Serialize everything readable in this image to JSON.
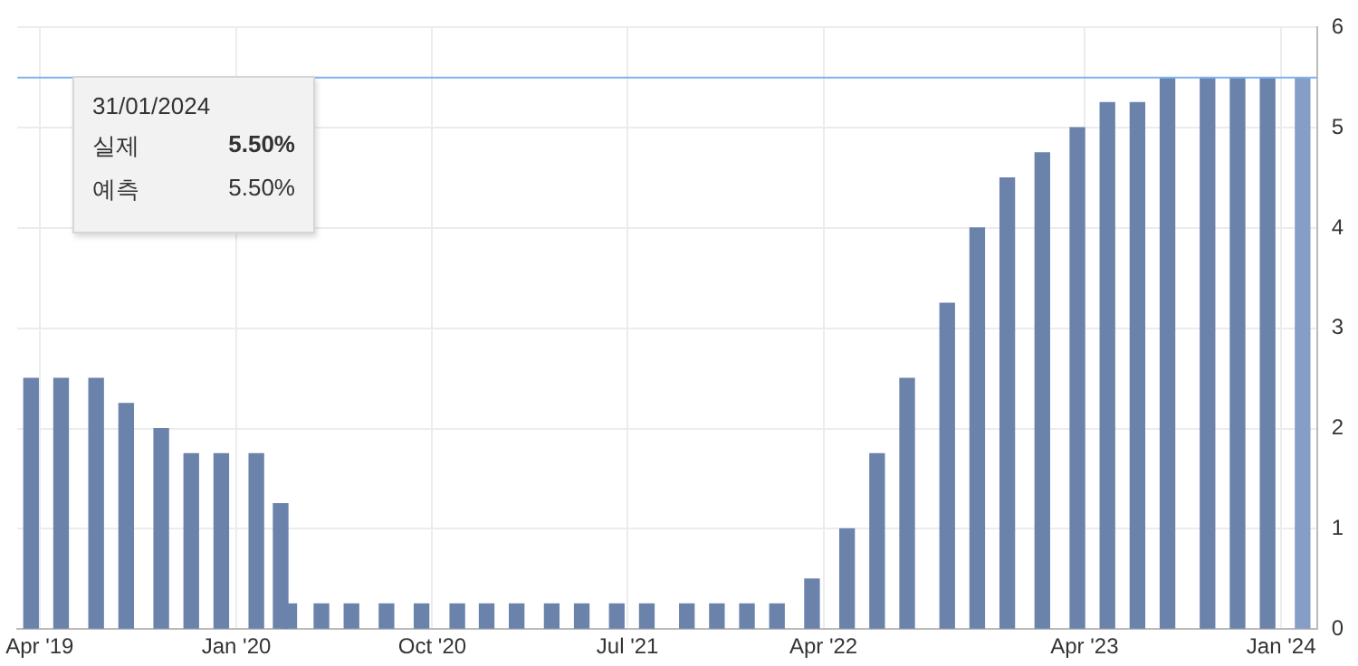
{
  "chart_data": {
    "type": "bar",
    "x": [
      "2019-03-20",
      "2019-05-01",
      "2019-06-19",
      "2019-07-31",
      "2019-09-18",
      "2019-10-30",
      "2019-12-11",
      "2020-01-29",
      "2020-03-03",
      "2020-03-15",
      "2020-04-29",
      "2020-06-10",
      "2020-07-29",
      "2020-09-16",
      "2020-11-05",
      "2020-12-16",
      "2021-01-27",
      "2021-03-17",
      "2021-04-28",
      "2021-06-16",
      "2021-07-28",
      "2021-09-22",
      "2021-11-03",
      "2021-12-15",
      "2022-01-26",
      "2022-03-16",
      "2022-05-04",
      "2022-06-15",
      "2022-07-27",
      "2022-09-21",
      "2022-11-02",
      "2022-12-14",
      "2023-02-01",
      "2023-03-22",
      "2023-05-03",
      "2023-06-14",
      "2023-07-26",
      "2023-09-20",
      "2023-11-01",
      "2023-12-13",
      "2024-01-31"
    ],
    "series": [
      {
        "colors": [
          "#6b82ab",
          "#6b82ab",
          "#6b82ab",
          "#6b82ab",
          "#6b82ab",
          "#6b82ab",
          "#6b82ab",
          "#6b82ab",
          "#6b82ab",
          "#6b82ab",
          "#6b82ab",
          "#6b82ab",
          "#6b82ab",
          "#6b82ab",
          "#6b82ab",
          "#6b82ab",
          "#6b82ab",
          "#6b82ab",
          "#6b82ab",
          "#6b82ab",
          "#6b82ab",
          "#6b82ab",
          "#6b82ab",
          "#6b82ab",
          "#6b82ab",
          "#6b82ab",
          "#6b82ab",
          "#6b82ab",
          "#6b82ab",
          "#6b82ab",
          "#6b82ab",
          "#6b82ab",
          "#6b82ab",
          "#6b82ab",
          "#6b82ab",
          "#6b82ab",
          "#6b82ab",
          "#6b82ab",
          "#6b82ab",
          "#6b82ab",
          "#869dc5"
        ],
        "values": [
          2.5,
          2.5,
          2.5,
          2.25,
          2.0,
          1.75,
          1.75,
          1.75,
          1.25,
          0.25,
          0.25,
          0.25,
          0.25,
          0.25,
          0.25,
          0.25,
          0.25,
          0.25,
          0.25,
          0.25,
          0.25,
          0.25,
          0.25,
          0.25,
          0.25,
          0.5,
          1.0,
          1.75,
          2.5,
          3.25,
          4.0,
          4.5,
          4.75,
          5.0,
          5.25,
          5.25,
          5.5,
          5.5,
          5.5,
          5.5,
          5.5
        ]
      }
    ],
    "xlim": [
      "2019-03-01",
      "2024-02-20"
    ],
    "xticks": [
      {
        "value": "2019-04-01",
        "label": "Apr '19"
      },
      {
        "value": "2020-01-01",
        "label": "Jan '20"
      },
      {
        "value": "2020-10-01",
        "label": "Oct '20"
      },
      {
        "value": "2021-07-01",
        "label": "Jul '21"
      },
      {
        "value": "2022-04-01",
        "label": "Apr '22"
      },
      {
        "value": "2023-04-01",
        "label": "Apr '23"
      },
      {
        "value": "2024-01-01",
        "label": "Jan '24"
      }
    ],
    "ylim": [
      0,
      6
    ],
    "yticks": [
      0,
      1,
      2,
      3,
      4,
      5,
      6
    ],
    "grid": true,
    "legend": false,
    "ref_lines": [
      {
        "axis": "y",
        "value": 5.5,
        "color": "#7fb2f0"
      }
    ],
    "annotations": [
      "31/01/2024",
      "실제",
      "5.50%",
      "예측",
      "5.50%"
    ]
  }
}
